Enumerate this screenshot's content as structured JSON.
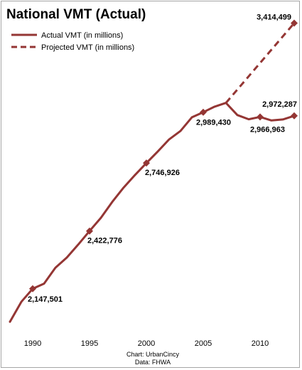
{
  "chart_data": {
    "type": "line",
    "title": "National VMT (Actual)",
    "xlabel": "",
    "ylabel": "",
    "x_ticks": [
      1990,
      1995,
      2000,
      2005,
      2010
    ],
    "xlim": [
      1988,
      2013
    ],
    "ylim": [
      1950000,
      3450000
    ],
    "grid": false,
    "legend_position": "top-left",
    "source_lines": [
      "Chart: UrbanCincy",
      "Data: FHWA"
    ],
    "series": [
      {
        "name": "Actual VMT (in millions)",
        "style": "solid",
        "color": "#943634",
        "x": [
          1988,
          1989,
          1990,
          1991,
          1992,
          1993,
          1994,
          1995,
          1996,
          1997,
          1998,
          1999,
          2000,
          2001,
          2002,
          2003,
          2004,
          2005,
          2006,
          2007,
          2008,
          2009,
          2010,
          2011,
          2012,
          2013
        ],
        "y": [
          1990000,
          2085000,
          2147501,
          2172000,
          2248000,
          2296000,
          2358000,
          2422776,
          2486000,
          2562000,
          2630000,
          2690000,
          2746926,
          2802000,
          2860000,
          2900000,
          2965000,
          2989430,
          3016000,
          3034000,
          2976000,
          2956000,
          2966963,
          2950000,
          2955000,
          2972287
        ],
        "marked_points": [
          {
            "x": 1990,
            "y": 2147501,
            "label": "2,147,501"
          },
          {
            "x": 1995,
            "y": 2422776,
            "label": "2,422,776"
          },
          {
            "x": 2000,
            "y": 2746926,
            "label": "2,746,926"
          },
          {
            "x": 2005,
            "y": 2989430,
            "label": "2,989,430"
          },
          {
            "x": 2010,
            "y": 2966963,
            "label": "2,966,963"
          },
          {
            "x": 2013,
            "y": 2972287,
            "label": "2,972,287"
          }
        ]
      },
      {
        "name": "Projected VMT (in millions)",
        "style": "dashed",
        "color": "#943634",
        "x": [
          2007,
          2013
        ],
        "y": [
          3034000,
          3414499
        ],
        "marked_points": [
          {
            "x": 2013,
            "y": 3414499,
            "label": "3,414,499"
          }
        ]
      }
    ]
  }
}
